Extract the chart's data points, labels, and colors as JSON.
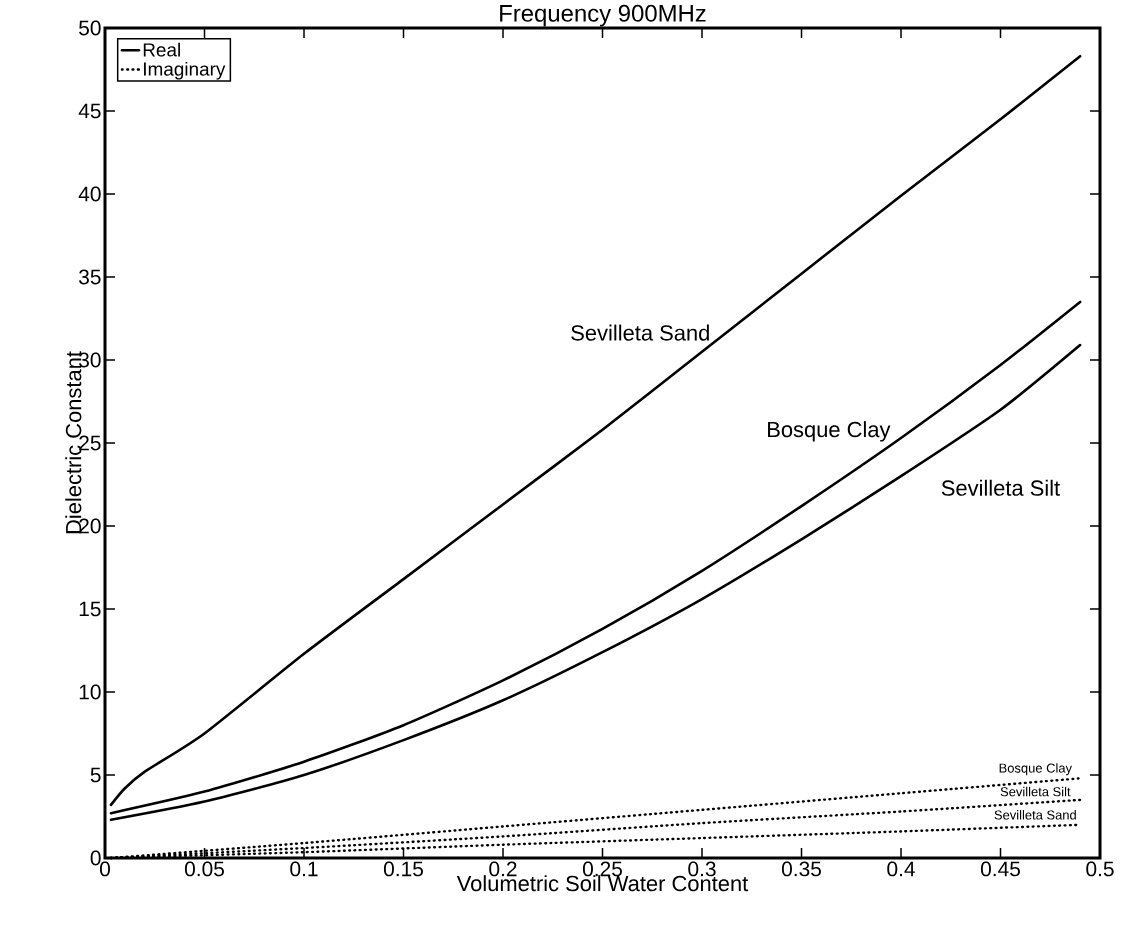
{
  "chart_data": {
    "type": "line",
    "title": "Frequency 900MHz",
    "xlabel": "Volumetric Soil Water Content",
    "ylabel": "Dielectric Constant",
    "xlim": [
      0,
      0.5
    ],
    "ylim": [
      0,
      50
    ],
    "xticks": [
      0,
      0.05,
      0.1,
      0.15,
      0.2,
      0.25,
      0.3,
      0.35,
      0.4,
      0.45,
      0.5
    ],
    "yticks": [
      0,
      5,
      10,
      15,
      20,
      25,
      30,
      35,
      40,
      45,
      50
    ],
    "legend": "top left",
    "grid": false,
    "marker": "none",
    "series": [
      {
        "name": "Real",
        "color": "#000000",
        "line_style": "solid",
        "x": [
          0.003,
          0.01,
          0.02,
          0.05,
          0.1,
          0.15,
          0.2,
          0.25,
          0.3,
          0.35,
          0.4,
          0.45,
          0.49
        ],
        "values": [
          3.2,
          4.2,
          5.2,
          7.5,
          12.3,
          16.8,
          21.3,
          25.8,
          30.5,
          35.2,
          39.9,
          44.5,
          48.3
        ]
      },
      {
        "color": "#000000",
        "line_style": "solid",
        "x": [
          0.003,
          0.05,
          0.1,
          0.15,
          0.2,
          0.25,
          0.3,
          0.35,
          0.4,
          0.45,
          0.49
        ],
        "values": [
          2.7,
          4.0,
          5.8,
          8.0,
          10.7,
          13.8,
          17.3,
          21.2,
          25.3,
          29.7,
          33.5
        ]
      },
      {
        "color": "#000000",
        "line_style": "solid",
        "x": [
          0.003,
          0.05,
          0.1,
          0.15,
          0.2,
          0.25,
          0.3,
          0.35,
          0.4,
          0.45,
          0.49
        ],
        "values": [
          2.3,
          3.4,
          5.0,
          7.1,
          9.5,
          12.4,
          15.6,
          19.2,
          23.0,
          27.0,
          30.9
        ]
      },
      {
        "name": "Imaginary",
        "color": "#000000",
        "line_style": "dotted",
        "x": [
          0.003,
          0.1,
          0.2,
          0.3,
          0.4,
          0.49
        ],
        "values": [
          0.0,
          0.9,
          1.9,
          2.9,
          3.9,
          4.8
        ]
      },
      {
        "color": "#000000",
        "line_style": "dotted",
        "x": [
          0.003,
          0.1,
          0.2,
          0.3,
          0.4,
          0.49
        ],
        "values": [
          0.0,
          0.6,
          1.3,
          2.1,
          2.8,
          3.5
        ]
      },
      {
        "color": "#000000",
        "line_style": "dotted",
        "x": [
          0.003,
          0.1,
          0.2,
          0.3,
          0.4,
          0.49
        ],
        "values": [
          0.0,
          0.35,
          0.8,
          1.2,
          1.6,
          2.0
        ]
      }
    ],
    "annotations": [
      "Sevilleta Sand",
      "Bosque Clay",
      "Sevilleta Silt",
      "Bosque Clay",
      "Sevilleta Silt",
      "Sevilleta Sand"
    ]
  }
}
